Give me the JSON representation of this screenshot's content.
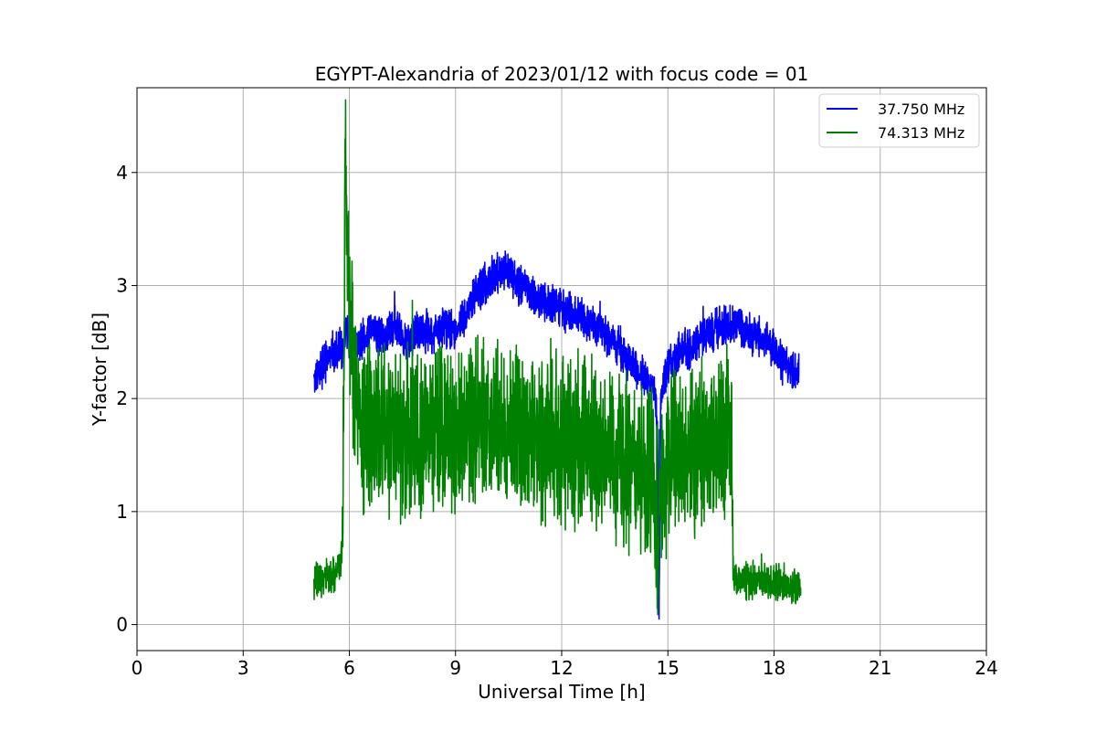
{
  "chart_data": {
    "type": "line",
    "title": "EGYPT-Alexandria of 2023/01/12 with focus code = 01",
    "xlabel": "Universal Time [h]",
    "ylabel": "Y-factor [dB]",
    "xlim": [
      0,
      24
    ],
    "ylim": [
      -0.23,
      4.75
    ],
    "xticks": [
      0,
      3,
      6,
      9,
      12,
      15,
      18,
      21,
      24
    ],
    "yticks": [
      0,
      1,
      2,
      3,
      4
    ],
    "grid": true,
    "legend_position": "top-right",
    "series": [
      {
        "name": "37.750 MHz",
        "color": "#0000ff",
        "noise": 0.13,
        "seed": 17,
        "x": [
          5.0,
          5.3,
          5.6,
          5.85,
          5.9,
          6.0,
          6.3,
          6.6,
          7.0,
          7.3,
          7.6,
          8.0,
          8.3,
          8.6,
          9.0,
          9.3,
          9.6,
          10.0,
          10.2,
          10.4,
          10.6,
          10.8,
          11.0,
          11.3,
          11.6,
          12.0,
          12.3,
          12.6,
          13.0,
          13.3,
          13.6,
          14.0,
          14.3,
          14.6,
          14.7,
          14.75,
          14.8,
          15.0,
          15.3,
          15.6,
          16.0,
          16.3,
          16.6,
          16.9,
          17.2,
          17.5,
          17.8,
          18.1,
          18.4,
          18.7
        ],
        "y": [
          2.2,
          2.3,
          2.4,
          2.45,
          2.7,
          2.4,
          2.5,
          2.6,
          2.55,
          2.65,
          2.5,
          2.6,
          2.55,
          2.65,
          2.6,
          2.75,
          2.95,
          3.05,
          3.1,
          3.15,
          3.1,
          3.0,
          2.95,
          2.9,
          2.85,
          2.8,
          2.75,
          2.7,
          2.65,
          2.55,
          2.45,
          2.3,
          2.2,
          2.1,
          1.8,
          0.05,
          2.0,
          2.3,
          2.4,
          2.45,
          2.55,
          2.6,
          2.65,
          2.65,
          2.6,
          2.55,
          2.5,
          2.4,
          2.3,
          2.2
        ]
      },
      {
        "name": "74.313 MHz",
        "color": "#008000",
        "noise": 0.55,
        "seed": 91,
        "x": [
          5.0,
          5.3,
          5.6,
          5.75,
          5.82,
          5.88,
          5.92,
          5.97,
          6.05,
          6.15,
          6.3,
          6.6,
          7.0,
          7.3,
          7.6,
          8.0,
          8.3,
          8.6,
          9.0,
          9.3,
          9.6,
          10.0,
          10.3,
          10.6,
          11.0,
          11.3,
          11.6,
          12.0,
          12.3,
          12.6,
          13.0,
          13.3,
          13.6,
          14.0,
          14.3,
          14.6,
          14.7,
          14.75,
          14.85,
          15.0,
          15.3,
          15.6,
          16.0,
          16.3,
          16.6,
          16.8,
          16.85,
          17.2,
          17.6,
          18.0,
          18.4,
          18.75
        ],
        "y": [
          0.4,
          0.42,
          0.45,
          0.5,
          0.8,
          4.3,
          3.8,
          3.0,
          2.5,
          2.1,
          1.8,
          1.7,
          1.75,
          1.7,
          1.65,
          1.7,
          1.75,
          1.7,
          1.7,
          1.72,
          1.75,
          1.8,
          1.75,
          1.72,
          1.7,
          1.7,
          1.68,
          1.65,
          1.6,
          1.6,
          1.55,
          1.5,
          1.45,
          1.4,
          1.35,
          1.3,
          0.3,
          1.2,
          1.35,
          1.4,
          1.45,
          1.5,
          1.55,
          1.6,
          1.65,
          1.7,
          0.4,
          0.38,
          0.4,
          0.38,
          0.35,
          0.32
        ]
      }
    ]
  }
}
